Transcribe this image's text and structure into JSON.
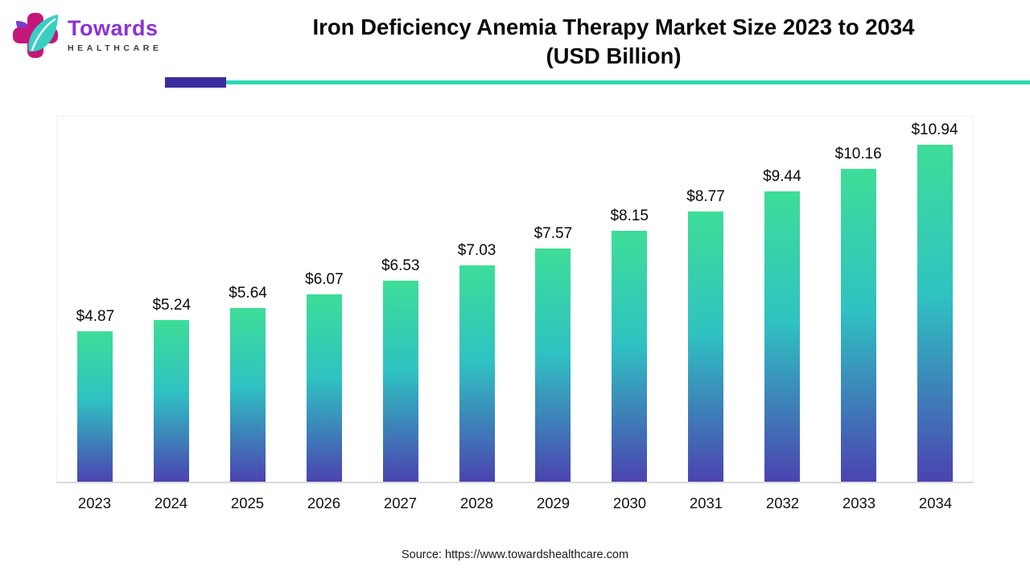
{
  "brand": {
    "name_line1": "Towards",
    "name_line2": "HEALTHCARE",
    "logo_colors": {
      "cross": "#c4177c",
      "leaf": "#38cfc2",
      "accent_leaf": "#7a3bd4"
    }
  },
  "header": {
    "title_line1": "Iron Deficiency Anemia Therapy Market Size 2023 to 2034",
    "title_line2": "(USD Billion)"
  },
  "divider_colors": {
    "purple": "#3b2d9e",
    "teal": "#2ed9b4"
  },
  "chart_data": {
    "type": "bar",
    "title": "Iron Deficiency Anemia Therapy Market Size 2023 to 2034 (USD Billion)",
    "xlabel": "",
    "ylabel": "",
    "ylim": [
      0,
      11.9
    ],
    "grid": false,
    "legend": "none",
    "categories": [
      "2023",
      "2024",
      "2025",
      "2026",
      "2027",
      "2028",
      "2029",
      "2030",
      "2031",
      "2032",
      "2033",
      "2034"
    ],
    "values": [
      4.87,
      5.24,
      5.64,
      6.07,
      6.53,
      7.03,
      7.57,
      8.15,
      8.77,
      9.44,
      10.16,
      10.94
    ],
    "labels": [
      "$4.87",
      "$5.24",
      "$5.64",
      "$6.07",
      "$6.53",
      "$7.03",
      "$7.57",
      "$8.15",
      "$8.77",
      "$9.44",
      "$10.16",
      "$10.94"
    ],
    "bar_gradient": [
      "#3edd98",
      "#2fc2c2",
      "#4b43b0"
    ]
  },
  "footer": {
    "source": "Source: https://www.towardshealthcare.com"
  }
}
